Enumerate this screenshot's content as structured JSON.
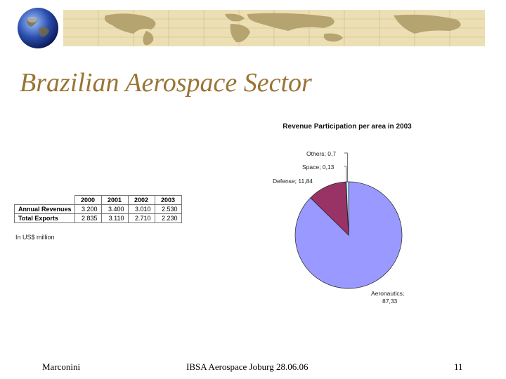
{
  "slide": {
    "title": "Brazilian Aerospace Sector",
    "footer_left": "Marconini",
    "footer_center": "IBSA Aerospace Joburg 28.06.06",
    "page_number": "11"
  },
  "table": {
    "years": [
      "2000",
      "2001",
      "2002",
      "2003"
    ],
    "rows": [
      {
        "label": "Annual Revenues",
        "values": [
          "3.200",
          "3.400",
          "3.010",
          "2.530"
        ]
      },
      {
        "label": "Total Exports",
        "values": [
          "2.835",
          "3.110",
          "2.710",
          "2.230"
        ]
      }
    ],
    "unit_note": "In US$ million"
  },
  "colors": {
    "title": "#9a7434",
    "banner": "#ecdfb4",
    "aeronautics": "#9999ff",
    "defense": "#993366",
    "space": "#ffffcc",
    "others": "#ccffff"
  },
  "chart_data": {
    "type": "pie",
    "title": "Revenue Participation per area in 2003",
    "slices": [
      {
        "label": "Aeronautics",
        "value": 87.33,
        "label_text": "Aeronautics;",
        "value_text": "87,33",
        "color": "#9999ff"
      },
      {
        "label": "Defense",
        "value": 11.84,
        "label_text": "Defense; 11,84",
        "color": "#993366"
      },
      {
        "label": "Space",
        "value": 0.13,
        "label_text": "Space; 0,13",
        "color": "#ffffcc"
      },
      {
        "label": "Others",
        "value": 0.7,
        "label_text": "Others; 0,7",
        "color": "#ccffff"
      }
    ]
  }
}
